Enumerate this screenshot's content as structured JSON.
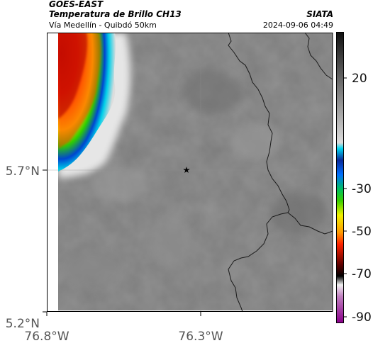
{
  "header": {
    "satellite": "GOES-EAST",
    "product": "Temperatura de Brillo CH13",
    "region": "Vía Medellín - Quibdó 50km",
    "organization": "SIATA",
    "timestamp": "2024-09-06 04:49"
  },
  "axes": {
    "lat_ticks": [
      "5.7°N",
      "5.2°N"
    ],
    "lon_ticks": [
      "76.8°W",
      "76.3°W"
    ]
  },
  "colorbar": {
    "ticks": [
      "20",
      "-30",
      "-50",
      "-70",
      "-90"
    ]
  },
  "map": {
    "background_color": "#7d7d7d",
    "marker": "star-marker",
    "boundary_color": "#1a1a1a"
  }
}
